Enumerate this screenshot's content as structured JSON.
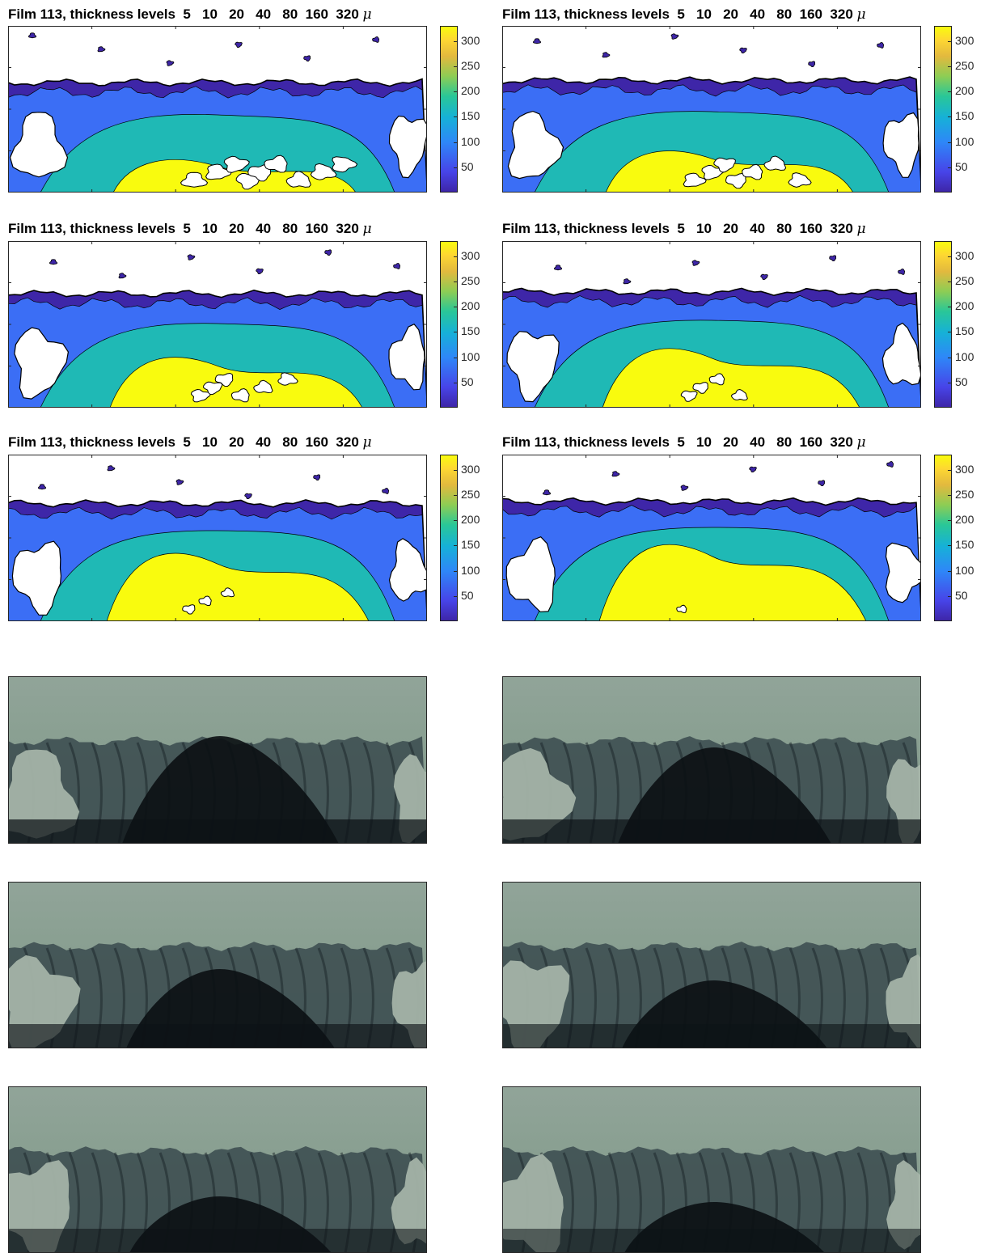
{
  "panels": [
    {
      "title": "Film 113, thickness levels  5   10   20   40   80  160  320",
      "unit": "μ",
      "fill": 0.0
    },
    {
      "title": "Film 113, thickness levels  5   10   20   40   80  160  320",
      "unit": "μ",
      "fill": 0.2
    },
    {
      "title": "Film 113, thickness levels  5   10   20   40   80  160  320",
      "unit": "μ",
      "fill": 0.4
    },
    {
      "title": "Film 113, thickness levels  5   10   20   40   80  160  320",
      "unit": "μ",
      "fill": 0.6
    },
    {
      "title": "Film 113, thickness levels  5   10   20   40   80  160  320",
      "unit": "μ",
      "fill": 0.8
    },
    {
      "title": "Film 113, thickness levels  5   10   20   40   80  160  320",
      "unit": "μ",
      "fill": 1.0
    }
  ],
  "colorbar": {
    "ticks": [
      "300",
      "250",
      "200",
      "150",
      "100",
      "50"
    ],
    "tick_values": [
      300,
      250,
      200,
      150,
      100,
      50
    ],
    "range": [
      0,
      330
    ]
  },
  "colors": {
    "level_1": "#3e26a8",
    "level_2": "#3b6ef5",
    "level_3": "#1fb9b5",
    "level_4": "#f9fb0e",
    "photo_light": "#91a499",
    "photo_dark": "#0b1013"
  },
  "photos": [
    {
      "darkness": 0.95
    },
    {
      "darkness": 0.85
    },
    {
      "darkness": 0.7
    },
    {
      "darkness": 0.6
    },
    {
      "darkness": 0.5
    },
    {
      "darkness": 0.45
    }
  ]
}
